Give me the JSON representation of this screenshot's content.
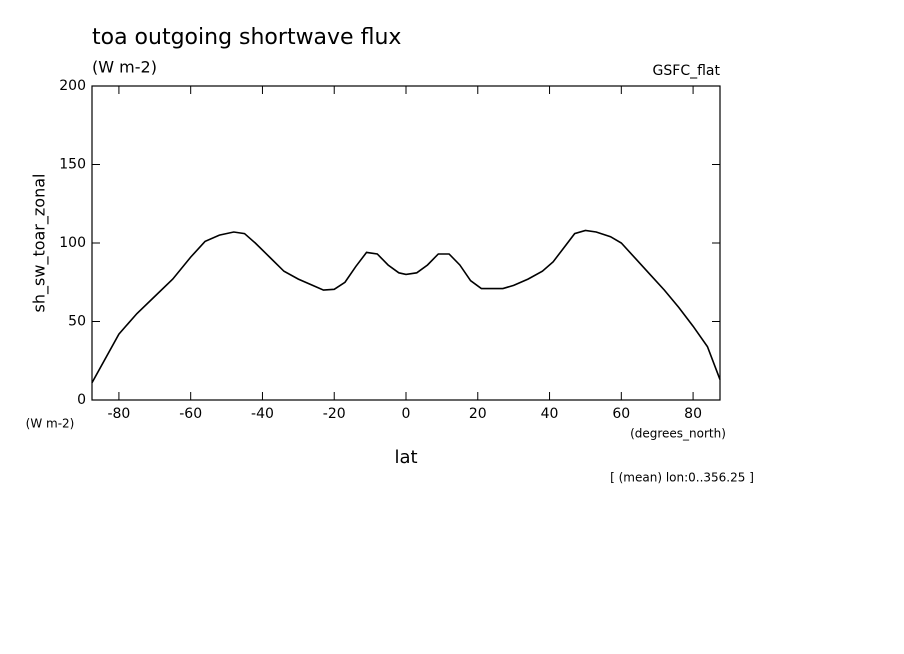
{
  "chart_data": {
    "type": "line",
    "title": "toa outgoing shortwave flux",
    "subtitle": "(W m-2)",
    "source": "GSFC_flat",
    "y_label": "sh_sw_toar_zonal",
    "y_units": "(W m-2)",
    "x_label": "lat",
    "x_units": "(degrees_north)",
    "note": "[ (mean) lon:0..356.25 ]",
    "x": [
      -87.5,
      -80,
      -75,
      -70,
      -65,
      -60,
      -56,
      -52,
      -48,
      -45,
      -42,
      -38,
      -34,
      -30,
      -26,
      -23,
      -20,
      -17,
      -14,
      -11,
      -8,
      -5,
      -2,
      0,
      3,
      6,
      9,
      12,
      15,
      18,
      21,
      24,
      27,
      30,
      34,
      38,
      41,
      44,
      47,
      50,
      53,
      57,
      60,
      64,
      68,
      72,
      76,
      80,
      84,
      87.5
    ],
    "series": [
      {
        "name": "sh_sw_toar_zonal",
        "color": "#000000",
        "values": [
          11,
          42,
          55,
          66,
          77,
          91,
          101,
          105,
          107,
          106,
          100,
          91,
          82,
          77,
          73,
          70,
          70.5,
          75,
          85,
          94,
          93,
          86,
          81,
          80,
          81,
          86,
          93,
          93,
          86,
          76,
          71,
          71,
          71,
          73,
          77,
          82,
          88,
          97,
          106,
          108,
          107,
          104,
          100,
          90,
          80,
          70,
          59,
          47,
          34,
          13
        ]
      }
    ],
    "xlim": [
      -87.5,
      87.5
    ],
    "xticks": [
      -80,
      -60,
      -40,
      -20,
      0,
      20,
      40,
      60,
      80
    ],
    "ylim": [
      0,
      200
    ],
    "yticks": [
      0,
      50,
      100,
      150,
      200
    ]
  }
}
